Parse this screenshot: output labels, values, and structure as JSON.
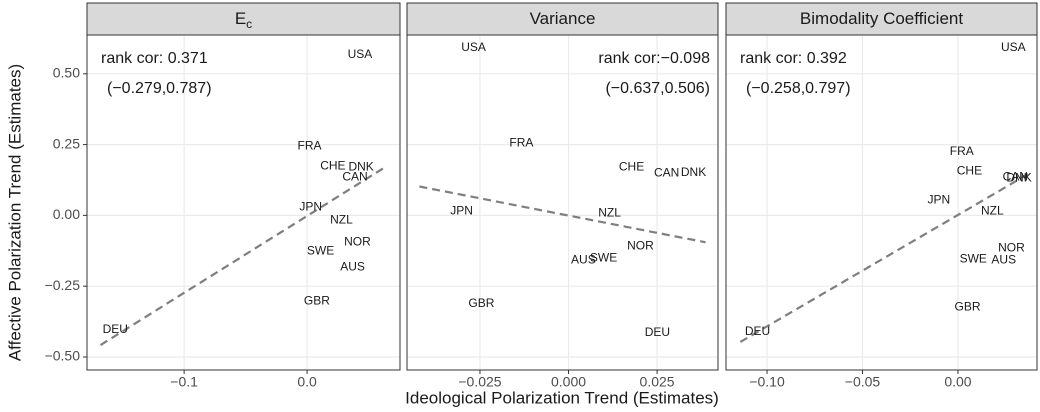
{
  "chart_data": [
    {
      "type": "scatter",
      "title": "E",
      "title_subscript": "c",
      "ylabel": "Affective Polarization Trend (Estimates)",
      "annotation": [
        "rank cor: 0.371",
        "(−0.279,0.787)"
      ],
      "xlim": [
        -0.179,
        0.0756
      ],
      "xticks": [
        {
          "value": -0.1,
          "label": "−0.1"
        },
        {
          "value": 0,
          "label": "0.0"
        }
      ],
      "ylim": [
        -0.546,
        0.637
      ],
      "yticks": [
        {
          "value": -0.5,
          "label": "−0.50"
        },
        {
          "value": -0.25,
          "label": "−0.25"
        },
        {
          "value": 0,
          "label": "0.00"
        },
        {
          "value": 0.25,
          "label": "0.25"
        },
        {
          "value": 0.5,
          "label": "0.50"
        }
      ],
      "grid": true,
      "labels": [
        "USA",
        "FRA",
        "CHE",
        "DNK",
        "CAN",
        "JPN",
        "NZL",
        "NOR",
        "SWE",
        "AUS",
        "GBR",
        "DEU"
      ],
      "x": [
        0.043,
        0.002,
        0.021,
        0.044,
        0.039,
        0.003,
        0.028,
        0.041,
        0.011,
        0.037,
        0.008,
        -0.156
      ],
      "y": [
        0.567,
        0.243,
        0.173,
        0.169,
        0.134,
        0.028,
        -0.018,
        -0.095,
        -0.127,
        -0.183,
        -0.303,
        -0.405
      ],
      "trend_line": {
        "x": [
          -0.168,
          0.063
        ],
        "y": [
          -0.458,
          0.169
        ]
      }
    },
    {
      "type": "scatter",
      "title": "Variance",
      "xlabel": "Ideological Polarization Trend (Estimates)",
      "annotation": [
        "rank cor:−0.098",
        "(−0.637,0.506)"
      ],
      "xlim": [
        -0.0456,
        0.0422
      ],
      "xticks": [
        {
          "value": -0.025,
          "label": "−0.025"
        },
        {
          "value": 0,
          "label": "0.000"
        },
        {
          "value": 0.025,
          "label": "0.025"
        }
      ],
      "ylim": [
        -0.546,
        0.637
      ],
      "grid": true,
      "labels": [
        "USA",
        "FRA",
        "CHE",
        "CAN",
        "DNK",
        "NZL",
        "JPN",
        "NOR",
        "AUS",
        "SWE",
        "GBR",
        "DEU"
      ],
      "x": [
        -0.0268,
        -0.0133,
        0.0178,
        0.0277,
        0.0353,
        0.0116,
        -0.0302,
        0.0203,
        0.0042,
        0.0099,
        -0.0246,
        0.0251
      ],
      "y": [
        0.592,
        0.254,
        0.169,
        0.148,
        0.151,
        0.007,
        0.014,
        -0.109,
        -0.158,
        -0.151,
        -0.313,
        -0.415
      ],
      "trend_line": {
        "x": [
          -0.0421,
          0.0387
        ],
        "y": [
          0.102,
          -0.095
        ]
      }
    },
    {
      "type": "scatter",
      "title": "Bimodality Coefficient",
      "annotation": [
        "rank cor: 0.392",
        "(−0.258,0.797)"
      ],
      "xlim": [
        -0.1215,
        0.0414
      ],
      "xticks": [
        {
          "value": -0.1,
          "label": "−0.10"
        },
        {
          "value": -0.05,
          "label": "−0.05"
        },
        {
          "value": 0,
          "label": "0.00"
        }
      ],
      "ylim": [
        -0.546,
        0.637
      ],
      "grid": true,
      "labels": [
        "USA",
        "FRA",
        "CHE",
        "CAN",
        "DNK",
        "JPN",
        "NZL",
        "NOR",
        "SWE",
        "AUS",
        "GBR",
        "DEU"
      ],
      "x": [
        0.029,
        0.002,
        0.006,
        0.03,
        0.032,
        -0.01,
        0.018,
        0.028,
        0.008,
        0.024,
        0.005,
        -0.105
      ],
      "y": [
        0.592,
        0.225,
        0.155,
        0.134,
        0.13,
        0.053,
        0.014,
        -0.116,
        -0.155,
        -0.158,
        -0.324,
        -0.412
      ],
      "trend_line": {
        "x": [
          -0.114,
          0.038
        ],
        "y": [
          -0.447,
          0.151
        ]
      }
    }
  ]
}
